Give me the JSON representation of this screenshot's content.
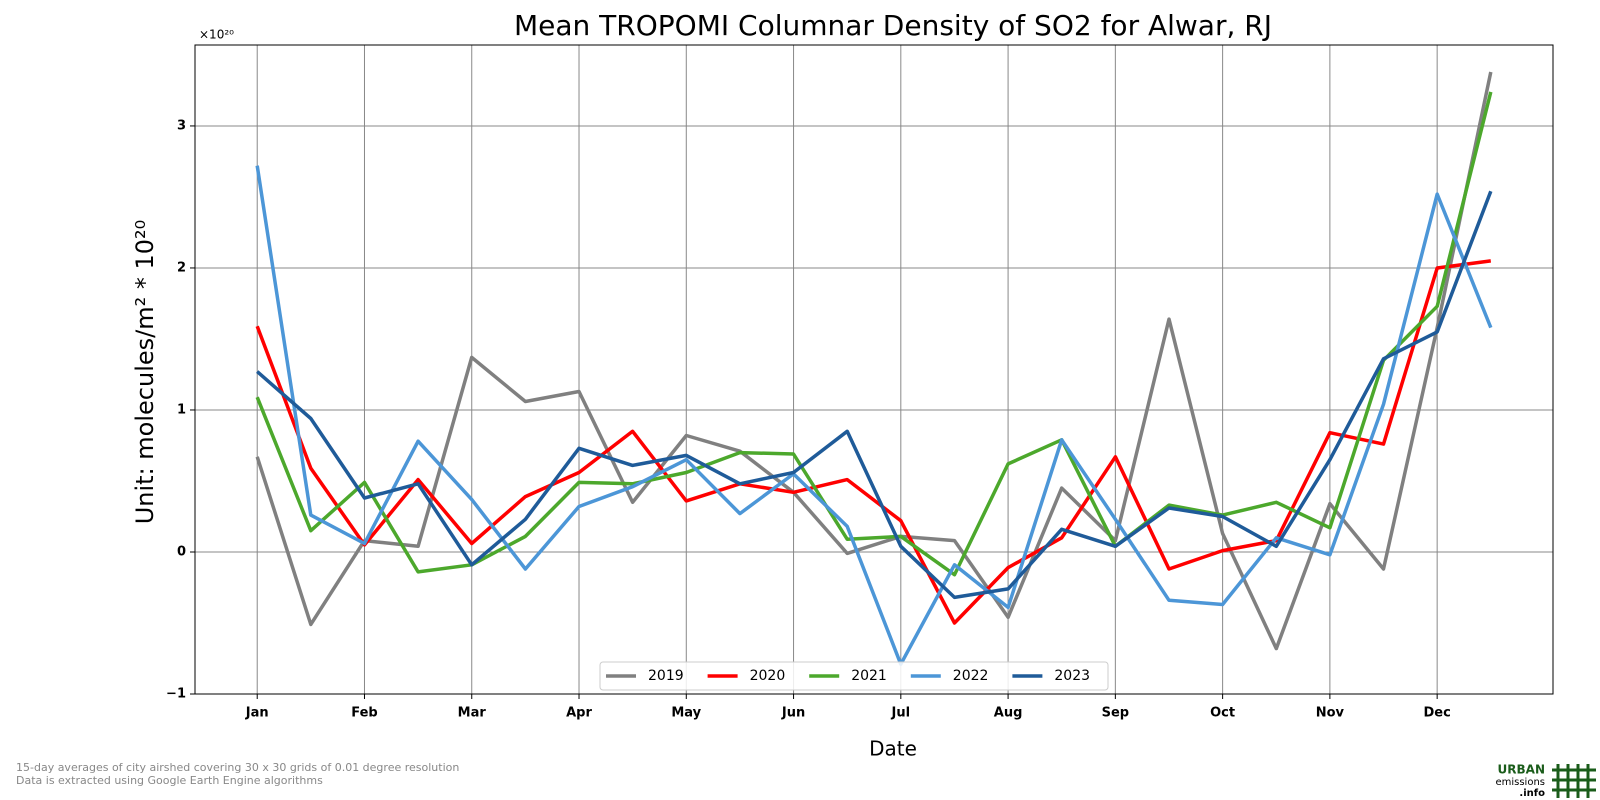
{
  "chart_data": {
    "type": "line",
    "title": "Mean TROPOMI Columnar Density of SO2 for Alwar, RJ",
    "y_offset_label": "×10²⁰",
    "ylabel": "Unit: molecules/m² * 10²⁰",
    "xlabel": "Date",
    "categories": [
      "Jan",
      null,
      "Feb",
      null,
      "Mar",
      null,
      "Apr",
      null,
      "May",
      null,
      "Jun",
      null,
      "Jul",
      null,
      "Aug",
      null,
      "Sep",
      null,
      "Oct",
      null,
      "Nov",
      null,
      "Dec",
      null
    ],
    "ylim": [
      -1.0,
      3.57
    ],
    "yticks": [
      {
        "value": -1,
        "label": "−1"
      },
      0,
      1,
      2,
      3
    ],
    "grid": true,
    "legend": "lower center",
    "series": [
      {
        "name": "2019",
        "color": "#808080",
        "values": [
          0.67,
          -0.51,
          0.08,
          0.04,
          1.37,
          1.06,
          1.13,
          0.35,
          0.82,
          0.71,
          0.42,
          -0.01,
          0.11,
          0.08,
          -0.46,
          0.45,
          0.08,
          1.64,
          0.13,
          -0.68,
          0.34,
          -0.12,
          1.58,
          3.38
        ]
      },
      {
        "name": "2020",
        "color": "#ff0000",
        "values": [
          1.59,
          0.59,
          0.05,
          0.51,
          0.06,
          0.39,
          0.56,
          0.85,
          0.36,
          0.48,
          0.42,
          0.51,
          0.22,
          -0.5,
          -0.11,
          0.1,
          0.67,
          -0.12,
          0.01,
          0.08,
          0.84,
          0.76,
          2.0,
          2.05
        ]
      },
      {
        "name": "2021",
        "color": "#4ca82c",
        "values": [
          1.09,
          0.15,
          0.49,
          -0.14,
          -0.09,
          0.11,
          0.49,
          0.48,
          0.56,
          0.7,
          0.69,
          0.09,
          0.11,
          -0.16,
          0.62,
          0.79,
          0.04,
          0.33,
          0.26,
          0.35,
          0.17,
          1.35,
          1.73,
          3.24
        ]
      },
      {
        "name": "2022",
        "color": "#4c96d7",
        "values": [
          2.72,
          0.26,
          0.06,
          0.78,
          0.37,
          -0.12,
          0.32,
          0.46,
          0.65,
          0.27,
          0.55,
          0.18,
          -0.79,
          -0.09,
          -0.39,
          0.79,
          0.23,
          -0.34,
          -0.37,
          0.1,
          -0.02,
          1.04,
          2.52,
          1.58
        ]
      },
      {
        "name": "2023",
        "color": "#1f5b99",
        "values": [
          1.27,
          0.94,
          0.38,
          0.48,
          -0.09,
          0.23,
          0.73,
          0.61,
          0.68,
          0.48,
          0.56,
          0.85,
          0.04,
          -0.32,
          -0.26,
          0.16,
          0.04,
          0.31,
          0.25,
          0.04,
          0.65,
          1.36,
          1.55,
          2.54
        ]
      }
    ]
  },
  "footnote": [
    "15-day averages of city airshed covering 30 x 30 grids of 0.01 degree resolution",
    "Data is extracted using Google Earth Engine algorithms"
  ],
  "logo": {
    "line1": "URBAN",
    "line2": "emissions",
    "line3": ".info"
  }
}
